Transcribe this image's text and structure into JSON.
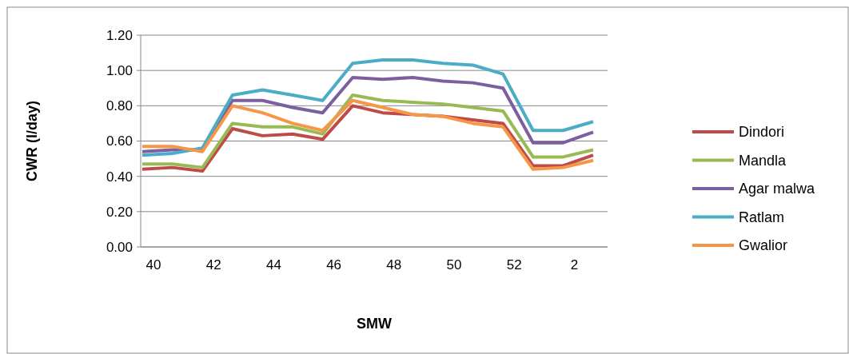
{
  "chart_data": {
    "type": "line",
    "xlabel": "SMW",
    "ylabel": "CWR (l/day)",
    "categories": [
      "40",
      null,
      "42",
      null,
      "44",
      null,
      "46",
      null,
      "48",
      null,
      "50",
      null,
      "52",
      null,
      "2",
      null
    ],
    "ylim": [
      0,
      1.2
    ],
    "yticks": [
      {
        "value": 0,
        "label": "0.00"
      },
      {
        "value": 0.2,
        "label": "0.20"
      },
      {
        "value": 0.4,
        "label": "0.40"
      },
      {
        "value": 0.6,
        "label": "0.60"
      },
      {
        "value": 0.8,
        "label": "0.80"
      },
      {
        "value": 1,
        "label": "1.00"
      },
      {
        "value": 1.2,
        "label": "1.20"
      }
    ],
    "grid": "y",
    "legend": "right",
    "marker": "none",
    "series": [
      {
        "name": "Dindori",
        "color": "#be4b48",
        "values": [
          0.44,
          0.45,
          0.43,
          0.67,
          0.63,
          0.64,
          0.61,
          0.8,
          0.76,
          0.75,
          0.74,
          0.72,
          0.7,
          0.46,
          0.46,
          0.52
        ]
      },
      {
        "name": "Mandla",
        "color": "#98b954",
        "values": [
          0.47,
          0.47,
          0.45,
          0.7,
          0.68,
          0.68,
          0.64,
          0.86,
          0.83,
          0.82,
          0.81,
          0.79,
          0.77,
          0.51,
          0.51,
          0.55
        ]
      },
      {
        "name": "Agar malwa",
        "color": "#7d5fa0",
        "values": [
          0.54,
          0.55,
          0.55,
          0.83,
          0.83,
          0.79,
          0.76,
          0.96,
          0.95,
          0.96,
          0.94,
          0.93,
          0.9,
          0.59,
          0.59,
          0.65
        ]
      },
      {
        "name": "Ratlam",
        "color": "#4bacc6",
        "values": [
          0.52,
          0.53,
          0.56,
          0.86,
          0.89,
          0.86,
          0.83,
          1.04,
          1.06,
          1.06,
          1.04,
          1.03,
          0.98,
          0.66,
          0.66,
          0.71
        ]
      },
      {
        "name": "Gwalior",
        "color": "#f79646",
        "values": [
          0.57,
          0.57,
          0.54,
          0.8,
          0.76,
          0.7,
          0.66,
          0.83,
          0.79,
          0.75,
          0.74,
          0.7,
          0.68,
          0.44,
          0.45,
          0.49
        ]
      }
    ]
  }
}
